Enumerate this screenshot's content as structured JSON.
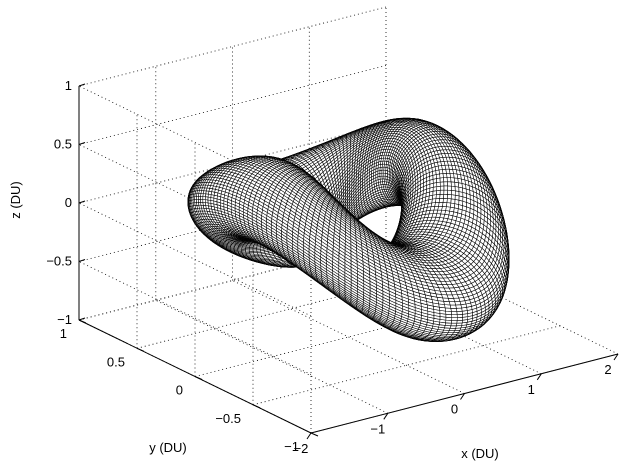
{
  "chart_data": {
    "type": "surface",
    "description_free": true,
    "xlabel": "x (DU)",
    "ylabel": "y (DU)",
    "zlabel": "z (DU)",
    "xlim": [
      -2,
      2
    ],
    "ylim": [
      -1,
      1
    ],
    "zlim": [
      -1,
      1
    ],
    "x_ticks": [
      "−2",
      "−1",
      "0",
      "1",
      "2"
    ],
    "y_ticks": [
      "−1",
      "−0.5",
      "0",
      "0.5",
      "1"
    ],
    "z_ticks": [
      "−1",
      "−0.5",
      "0",
      "0.5",
      "1"
    ],
    "grid": true,
    "grid_style": "dotted",
    "surface_color": "#000000",
    "surface_params": {
      "tube_angle_samples": 90,
      "loop_samples": 160,
      "center_x_amplitude": 0.95,
      "center_y_amplitude": 0.65,
      "center_z_amplitude": 0.3,
      "tube_radius_horizontal": 0.42,
      "tube_radius_vertical": 0.36
    }
  }
}
